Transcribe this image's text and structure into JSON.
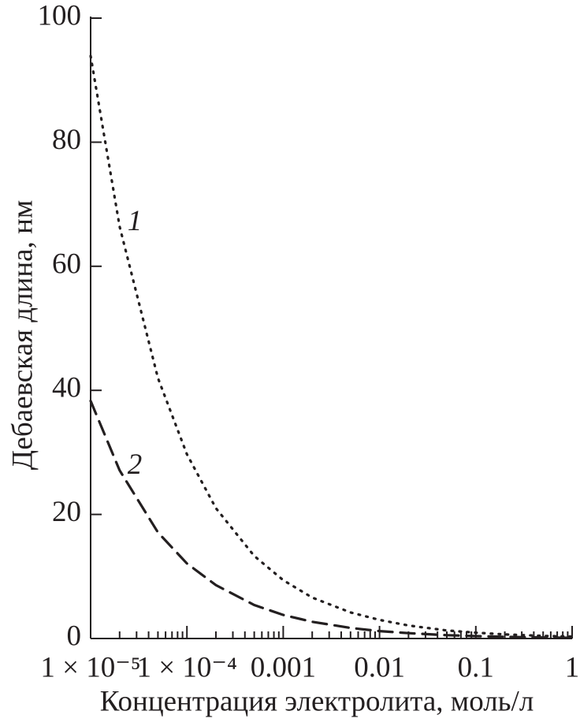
{
  "chart_data": {
    "type": "line",
    "x_label": "Концентрация электролита, моль/л",
    "y_label": "Дебаевская длина, нм",
    "x": [
      1e-05,
      2e-05,
      5e-05,
      0.0001,
      0.0002,
      0.0005,
      0.001,
      0.002,
      0.005,
      0.01,
      0.02,
      0.05,
      0.1,
      0.2,
      0.5,
      1
    ],
    "series": [
      {
        "name": "1",
        "color": "#231f20",
        "dash": "dotted",
        "values": [
          93.9,
          66.4,
          42.0,
          29.7,
          21.0,
          13.3,
          9.4,
          6.6,
          4.2,
          3.0,
          2.1,
          1.3,
          0.94,
          0.66,
          0.42,
          0.3
        ]
      },
      {
        "name": "2",
        "color": "#231f20",
        "dash": "dashed",
        "values": [
          38.3,
          27.1,
          17.1,
          12.1,
          8.6,
          5.4,
          3.8,
          2.7,
          1.7,
          1.2,
          0.86,
          0.54,
          0.38,
          0.27,
          0.17,
          0.12
        ]
      }
    ],
    "x_scale": "log",
    "minor_ticks": true,
    "xlim": [
      1e-05,
      1
    ],
    "xticks": [
      {
        "value": 1e-05,
        "label": "1 × 10⁻⁵"
      },
      {
        "value": 0.0001,
        "label": "1 × 10⁻⁴"
      },
      0.001,
      0.01,
      0.1,
      1
    ],
    "ylim": [
      0,
      100
    ],
    "yticks": [
      0,
      20,
      40,
      60,
      80,
      100
    ],
    "grid": false
  }
}
